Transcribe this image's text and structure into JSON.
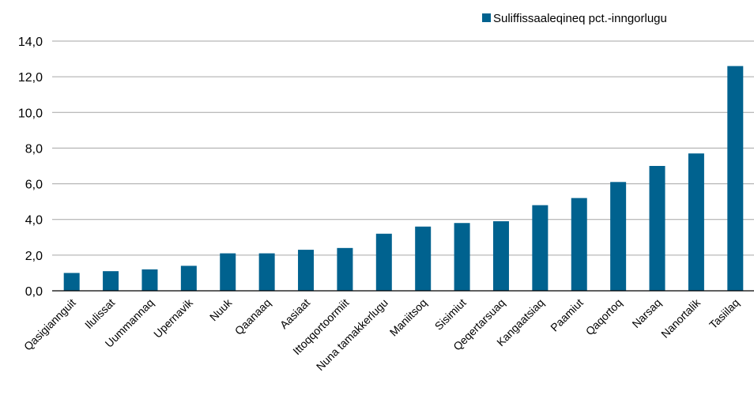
{
  "chart_data": {
    "type": "bar",
    "categories": [
      "Qasigiannguit",
      "Ilulissat",
      "Uummannaq",
      "Upernavik",
      "Nuuk",
      "Qaanaaq",
      "Aasiaat",
      "Ittoqqortoormiit",
      "Nuna tamakkerlugu",
      "Maniitsoq",
      "Sisimiut",
      "Qeqertarsuaq",
      "Kangaatsiaq",
      "Paamiut",
      "Qaqortoq",
      "Narsaq",
      "Nanortalik",
      "Tasiilaq"
    ],
    "series": [
      {
        "name": "Suliffissaaleqineq pct.-inngorlugu",
        "values": [
          1.0,
          1.1,
          1.2,
          1.4,
          2.1,
          2.1,
          2.3,
          2.4,
          3.2,
          3.6,
          3.8,
          3.9,
          4.8,
          5.2,
          6.1,
          7.0,
          7.7,
          12.6
        ]
      }
    ],
    "yticks": [
      "0,0",
      "2,0",
      "4,0",
      "6,0",
      "8,0",
      "10,0",
      "12,0",
      "14,0"
    ],
    "ylim": [
      0,
      14
    ],
    "title": "",
    "xlabel": "",
    "ylabel": "",
    "grid": true,
    "legend_position": "top-right",
    "colors": {
      "bar": "#00628f",
      "grid": "#a6a6a6",
      "axis": "#000000"
    }
  }
}
